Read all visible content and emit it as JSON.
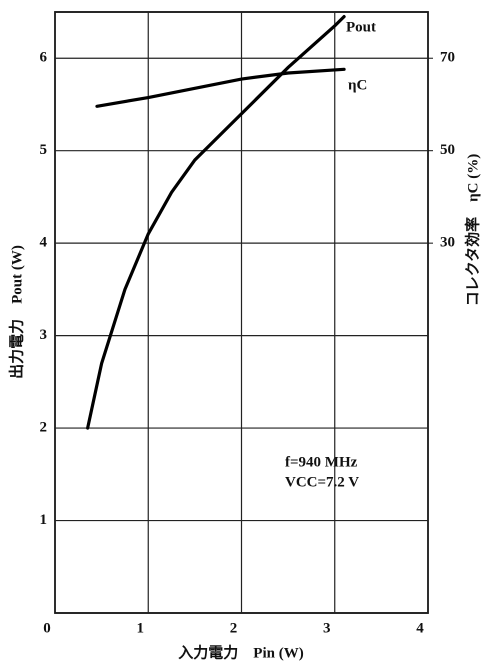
{
  "chart_data": {
    "type": "line",
    "x_label": "入力電力　Pin (W)",
    "y_label": "出力電力　Pout (W)",
    "y2_label": "コレクタ効率　ηC (%)",
    "annotations": [
      "f=940 MHz",
      "VCC=7.2 V"
    ],
    "xlim": [
      0,
      4
    ],
    "xticks": [
      0,
      1,
      2,
      3,
      4
    ],
    "ylim": [
      0,
      6.5
    ],
    "yticks": [
      1,
      2,
      3,
      4,
      5,
      6
    ],
    "y2lim": [
      -50,
      80
    ],
    "y2ticks": [
      30,
      50,
      70
    ],
    "grid": true,
    "series": [
      {
        "name": "Pout",
        "color": "#000000",
        "x": [
          0.35,
          0.5,
          0.75,
          1.0,
          1.25,
          1.5,
          2.0,
          2.5,
          3.0,
          3.1
        ],
        "values": [
          2.0,
          2.7,
          3.5,
          4.1,
          4.55,
          4.9,
          5.4,
          5.9,
          6.35,
          6.45
        ]
      },
      {
        "name": "ηC",
        "color": "#000000",
        "axis": "y2",
        "x": [
          0.45,
          1.0,
          1.5,
          2.0,
          2.5,
          3.1
        ],
        "values": [
          59.6,
          61.5,
          63.5,
          65.5,
          66.8,
          67.6
        ]
      }
    ]
  }
}
